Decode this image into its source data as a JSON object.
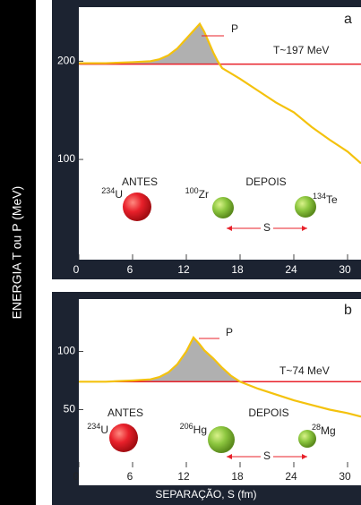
{
  "chart_data": [
    {
      "type": "line",
      "panel_label": "a",
      "ylabel": "ENERGIA T ou P (MeV)",
      "x": [
        0,
        3,
        6,
        8,
        9,
        10,
        11,
        12,
        13,
        13.5,
        14,
        15,
        15.5,
        16,
        18,
        20,
        22,
        24,
        26,
        28,
        30,
        31.5
      ],
      "series": [
        {
          "name": "P",
          "color": "#f4c20d",
          "values": [
            198,
            198,
            199,
            200,
            202,
            206,
            213,
            223,
            233,
            238,
            230,
            209,
            200,
            193,
            182,
            170,
            158,
            148,
            133,
            120,
            108,
            96
          ]
        }
      ],
      "threshold": {
        "label": "T~197 MeV",
        "value": 197,
        "color": "#e8202a"
      },
      "xlim": [
        0,
        31.5
      ],
      "ylim": [
        -2,
        255
      ],
      "xticks": [
        0,
        6,
        12,
        18,
        24,
        30
      ],
      "yticks": [
        100,
        200
      ],
      "before": "ANTES",
      "after": "DEPOIS",
      "nuclei": [
        {
          "mass": "234",
          "symbol": "U"
        },
        {
          "mass": "100",
          "symbol": "Zr"
        },
        {
          "mass": "134",
          "symbol": "Te"
        }
      ],
      "separation": "S"
    },
    {
      "type": "line",
      "panel_label": "b",
      "xlabel": "SEPARAÇÃO, S (fm)",
      "x": [
        0,
        3,
        6,
        8,
        9,
        10,
        11,
        12,
        12.8,
        13.5,
        14,
        15,
        16,
        17,
        18,
        20,
        22,
        24,
        26,
        28,
        30,
        31.5
      ],
      "series": [
        {
          "name": "P",
          "color": "#f4c20d",
          "values": [
            74,
            74,
            75,
            76,
            78,
            82,
            89,
            100,
            112,
            106,
            101,
            94,
            86,
            79,
            74,
            68,
            63,
            58,
            54,
            50,
            47,
            44
          ]
        }
      ],
      "threshold": {
        "label": "T~74 MeV",
        "value": 74,
        "color": "#e8202a"
      },
      "xlim": [
        0,
        31.5
      ],
      "ylim": [
        -15,
        145
      ],
      "xticks": [
        0,
        6,
        12,
        18,
        24,
        30
      ],
      "yticks": [
        50,
        100
      ],
      "before": "ANTES",
      "after": "DEPOIS",
      "nuclei": [
        {
          "mass": "234",
          "symbol": "U"
        },
        {
          "mass": "206",
          "symbol": "Hg"
        },
        {
          "mass": "28",
          "symbol": "Mg"
        }
      ],
      "separation": "S"
    }
  ]
}
